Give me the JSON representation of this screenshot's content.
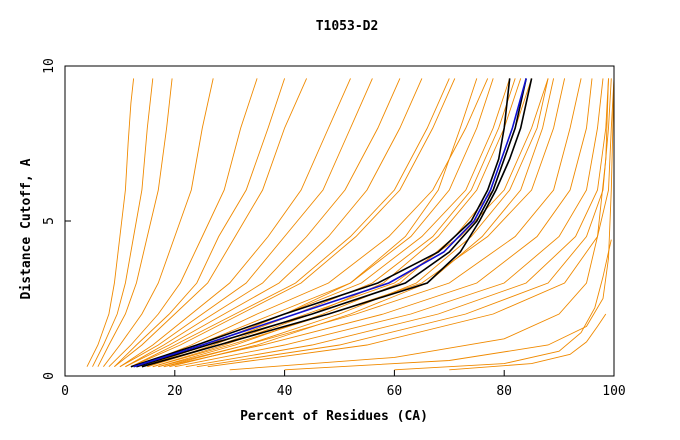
{
  "chart_data": {
    "type": "line",
    "title": "T1053-D2",
    "xlabel": "Percent of Residues (CA)",
    "ylabel": "Distance Cutoff, A",
    "xlim": [
      0,
      100
    ],
    "ylim": [
      0,
      10
    ],
    "xticks": [
      "0",
      "20",
      "40",
      "60",
      "80",
      "100"
    ],
    "yticks": [
      "0",
      "5",
      "10"
    ],
    "grid": false,
    "colors": {
      "models": "#f08a00",
      "highlight_dark": "#000000",
      "highlight_blue": "#1010d0"
    },
    "series": [
      {
        "role": "model",
        "x": [
          4,
          6,
          8,
          9,
          10,
          11,
          11.5,
          12,
          12.5
        ],
        "y": [
          0.3,
          1.0,
          2.0,
          3.0,
          4.5,
          6.0,
          7.5,
          8.8,
          9.6
        ]
      },
      {
        "role": "model",
        "x": [
          6,
          8,
          11,
          13,
          15,
          17,
          18.5,
          19.5
        ],
        "y": [
          0.3,
          1.0,
          2.0,
          3.0,
          4.5,
          6.0,
          8.0,
          9.6
        ]
      },
      {
        "role": "model",
        "x": [
          7,
          10,
          14,
          17,
          20,
          23,
          25,
          27
        ],
        "y": [
          0.3,
          1.0,
          2.0,
          3.0,
          4.5,
          6.0,
          8.0,
          9.6
        ]
      },
      {
        "role": "model",
        "x": [
          8,
          12,
          17,
          21,
          25,
          29,
          32,
          35
        ],
        "y": [
          0.3,
          1.0,
          2.0,
          3.0,
          4.5,
          6.0,
          8.0,
          9.6
        ]
      },
      {
        "role": "model",
        "x": [
          9,
          14,
          20,
          26,
          31,
          36,
          40,
          44
        ],
        "y": [
          0.3,
          1.0,
          2.0,
          3.0,
          4.5,
          6.0,
          8.0,
          9.6
        ]
      },
      {
        "role": "model",
        "x": [
          10,
          16,
          23,
          30,
          37,
          43,
          48,
          52
        ],
        "y": [
          0.3,
          1.0,
          2.0,
          3.0,
          4.5,
          6.0,
          8.0,
          9.6
        ]
      },
      {
        "role": "model",
        "x": [
          10,
          17,
          25,
          33,
          40,
          47,
          52,
          56
        ],
        "y": [
          0.3,
          1.0,
          2.0,
          3.0,
          4.5,
          6.0,
          8.0,
          9.6
        ]
      },
      {
        "role": "model",
        "x": [
          11,
          18,
          27,
          36,
          44,
          51,
          57,
          61
        ],
        "y": [
          0.3,
          1.0,
          2.0,
          3.0,
          4.5,
          6.0,
          8.0,
          9.6
        ]
      },
      {
        "role": "model",
        "x": [
          11,
          19,
          29,
          39,
          48,
          55,
          61,
          65
        ],
        "y": [
          0.3,
          1.0,
          2.0,
          3.0,
          4.5,
          6.0,
          8.0,
          9.6
        ]
      },
      {
        "role": "model",
        "x": [
          12,
          21,
          32,
          43,
          53,
          61,
          67,
          71
        ],
        "y": [
          0.3,
          1.0,
          2.0,
          3.0,
          4.5,
          6.0,
          8.0,
          9.6
        ]
      },
      {
        "role": "model",
        "x": [
          13,
          23,
          35,
          48,
          59,
          67,
          73,
          77
        ],
        "y": [
          0.3,
          1.0,
          2.0,
          3.0,
          4.5,
          6.0,
          8.0,
          9.6
        ]
      },
      {
        "role": "model",
        "x": [
          14,
          26,
          40,
          54,
          65,
          73,
          78,
          81
        ],
        "y": [
          0.3,
          1.0,
          2.0,
          3.0,
          4.5,
          6.0,
          8.0,
          9.6
        ]
      },
      {
        "role": "model",
        "x": [
          15,
          28,
          44,
          60,
          72,
          80,
          85,
          88
        ],
        "y": [
          0.3,
          1.0,
          2.0,
          3.0,
          4.5,
          6.0,
          8.0,
          9.6
        ]
      },
      {
        "role": "model",
        "x": [
          16,
          30,
          48,
          65,
          77,
          85,
          89,
          91
        ],
        "y": [
          0.3,
          1.0,
          2.0,
          3.0,
          4.5,
          6.0,
          8.0,
          9.6
        ]
      },
      {
        "role": "model",
        "x": [
          17,
          33,
          53,
          70,
          82,
          89,
          92,
          94
        ],
        "y": [
          0.3,
          1.0,
          2.0,
          3.0,
          4.5,
          6.0,
          8.0,
          9.6
        ]
      },
      {
        "role": "model",
        "x": [
          18,
          36,
          58,
          75,
          86,
          92,
          95,
          96
        ],
        "y": [
          0.3,
          1.0,
          2.0,
          3.0,
          4.5,
          6.0,
          8.0,
          9.6
        ]
      },
      {
        "role": "model",
        "x": [
          20,
          40,
          63,
          80,
          90,
          95,
          97,
          98
        ],
        "y": [
          0.3,
          1.0,
          2.0,
          3.0,
          4.5,
          6.0,
          8.0,
          9.6
        ]
      },
      {
        "role": "model",
        "x": [
          22,
          45,
          68,
          84,
          93,
          97,
          98.5,
          99
        ],
        "y": [
          0.3,
          1.0,
          2.0,
          3.0,
          4.5,
          6.0,
          8.0,
          9.6
        ]
      },
      {
        "role": "model",
        "x": [
          24,
          50,
          73,
          88,
          95,
          98,
          99,
          99.5
        ],
        "y": [
          0.3,
          1.0,
          2.0,
          3.0,
          4.5,
          6.0,
          8.0,
          9.6
        ]
      },
      {
        "role": "model",
        "x": [
          26,
          55,
          78,
          91,
          97,
          99,
          99.5,
          100
        ],
        "y": [
          0.3,
          1.0,
          2.0,
          3.0,
          4.5,
          6.0,
          8.0,
          9.6
        ]
      },
      {
        "role": "model",
        "x": [
          13,
          24,
          38,
          52,
          63,
          70,
          75,
          78
        ],
        "y": [
          0.3,
          1.0,
          2.0,
          3.0,
          4.5,
          6.0,
          8.0,
          9.6
        ]
      },
      {
        "role": "model",
        "x": [
          15,
          27,
          42,
          56,
          67,
          74,
          79,
          82
        ],
        "y": [
          0.3,
          1.0,
          2.0,
          3.0,
          4.5,
          6.0,
          8.0,
          9.6
        ]
      },
      {
        "role": "model",
        "x": [
          17,
          31,
          47,
          61,
          71,
          78,
          82,
          85
        ],
        "y": [
          0.3,
          1.0,
          2.0,
          3.0,
          4.5,
          6.0,
          8.0,
          9.6
        ]
      },
      {
        "role": "model",
        "x": [
          19,
          35,
          52,
          66,
          76,
          83,
          87,
          89
        ],
        "y": [
          0.3,
          1.0,
          2.0,
          3.0,
          4.5,
          6.0,
          8.0,
          9.6
        ]
      },
      {
        "role": "model",
        "x": [
          12,
          20,
          31,
          42,
          52,
          60,
          66,
          70
        ],
        "y": [
          0.3,
          1.0,
          2.0,
          3.0,
          4.5,
          6.0,
          8.0,
          9.6
        ]
      },
      {
        "role": "model",
        "x": [
          9,
          13,
          19,
          24,
          28,
          33,
          37,
          40
        ],
        "y": [
          0.3,
          1.0,
          2.0,
          3.0,
          4.5,
          6.0,
          8.0,
          9.6
        ]
      },
      {
        "role": "model",
        "x": [
          5,
          7,
          9.5,
          11,
          12.5,
          14,
          15,
          16
        ],
        "y": [
          0.3,
          1.0,
          2.0,
          3.0,
          4.5,
          6.0,
          8.0,
          9.6
        ]
      },
      {
        "role": "model",
        "x": [
          30,
          60,
          80,
          90,
          95,
          97,
          98.5,
          99
        ],
        "y": [
          0.2,
          0.6,
          1.2,
          2.0,
          3.0,
          4.5,
          7.0,
          9.6
        ]
      },
      {
        "role": "model",
        "x": [
          40,
          70,
          88,
          95,
          98,
          99,
          99.5,
          100
        ],
        "y": [
          0.2,
          0.5,
          1.0,
          1.6,
          2.5,
          3.8,
          6.0,
          9.6
        ]
      },
      {
        "role": "model",
        "x": [
          60,
          80,
          90,
          94,
          96.5,
          98,
          99,
          99.5
        ],
        "y": [
          0.2,
          0.4,
          0.8,
          1.4,
          2.2,
          3.2,
          4.0,
          4.4
        ]
      },
      {
        "role": "model",
        "x": [
          70,
          85,
          92,
          95,
          97,
          98.5
        ],
        "y": [
          0.2,
          0.4,
          0.7,
          1.1,
          1.6,
          2.0
        ]
      },
      {
        "role": "model",
        "x": [
          14,
          26,
          40,
          52,
          62,
          68,
          72,
          75
        ],
        "y": [
          0.3,
          1.0,
          2.0,
          3.0,
          4.5,
          6.0,
          8.0,
          9.6
        ]
      },
      {
        "role": "model",
        "x": [
          16,
          29,
          45,
          58,
          68,
          75,
          80,
          83
        ],
        "y": [
          0.3,
          1.0,
          2.0,
          3.0,
          4.5,
          6.0,
          8.0,
          9.6
        ]
      },
      {
        "role": "model",
        "x": [
          18,
          33,
          50,
          64,
          74,
          81,
          86,
          88
        ],
        "y": [
          0.3,
          1.0,
          2.0,
          3.0,
          4.5,
          6.0,
          8.0,
          9.6
        ]
      },
      {
        "role": "highlight_dark",
        "x": [
          12,
          24,
          40,
          57,
          68,
          74,
          77,
          79,
          80,
          81
        ],
        "y": [
          0.3,
          1.0,
          2.0,
          3.0,
          4.0,
          5.0,
          6.0,
          7.0,
          8.0,
          9.6
        ]
      },
      {
        "role": "highlight_dark",
        "x": [
          13,
          26,
          45,
          62,
          70,
          75,
          78,
          80,
          82,
          84
        ],
        "y": [
          0.3,
          1.0,
          2.0,
          3.0,
          4.0,
          5.0,
          6.0,
          7.0,
          8.0,
          9.6
        ]
      },
      {
        "role": "highlight_dark",
        "x": [
          14,
          28,
          48,
          66,
          72,
          75.5,
          78.5,
          81,
          83,
          85
        ],
        "y": [
          0.3,
          1.0,
          2.0,
          3.0,
          4.0,
          5.0,
          6.0,
          7.0,
          8.0,
          9.6
        ]
      },
      {
        "role": "highlight_blue",
        "x": [
          12.5,
          25,
          42,
          59,
          69,
          74.5,
          77.5,
          79.5,
          81.5,
          84
        ],
        "y": [
          0.3,
          1.0,
          2.0,
          3.0,
          4.0,
          5.0,
          6.0,
          7.0,
          8.0,
          9.6
        ]
      }
    ]
  }
}
